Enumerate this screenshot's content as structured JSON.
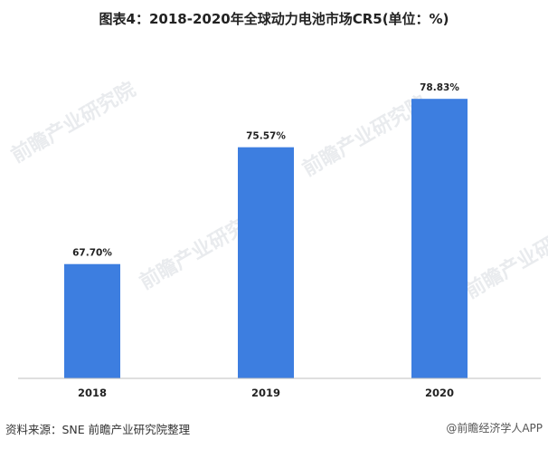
{
  "chart_data": {
    "type": "bar",
    "title": "图表4：2018-2020年全球动力电池市场CR5(单位：%)",
    "categories": [
      "2018",
      "2019",
      "2020"
    ],
    "values": [
      67.7,
      75.57,
      78.83
    ],
    "value_labels": [
      "67.70%",
      "75.57%",
      "78.83%"
    ],
    "xlabel": "",
    "ylabel": "",
    "ylim": [
      60,
      80
    ],
    "grid": false,
    "legend": "none",
    "bar_color": "#3d7ee0"
  },
  "source": "资料来源：SNE 前瞻产业研究院整理",
  "credit": "@前瞻经济学人APP",
  "watermark": "前瞻产业研究院"
}
